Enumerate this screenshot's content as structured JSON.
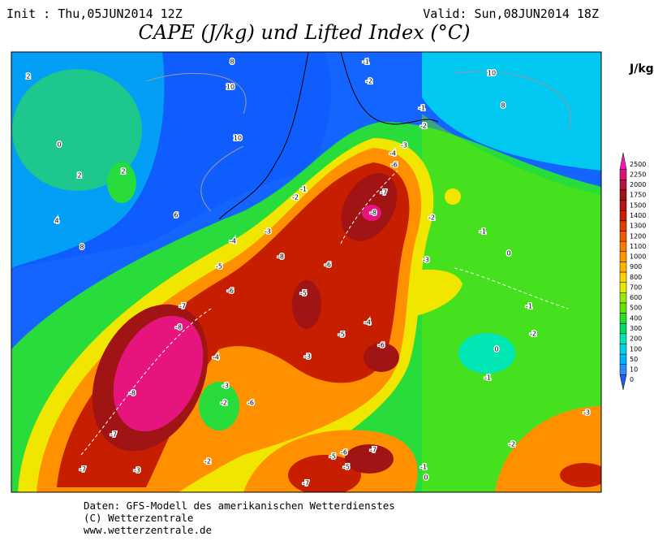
{
  "header": {
    "init": "Init : Thu,05JUN2014 12Z",
    "valid": "Valid: Sun,08JUN2014 18Z",
    "title": "CAPE (J/kg) und Lifted Index (°C)"
  },
  "colorbar": {
    "unit": "J/kg",
    "levels": [
      0,
      10,
      50,
      100,
      200,
      300,
      400,
      500,
      600,
      700,
      800,
      900,
      1000,
      1100,
      1200,
      1300,
      1400,
      1500,
      1750,
      2000,
      2250,
      2500
    ],
    "colors": [
      "#1e5aff",
      "#2a8cff",
      "#00b4ff",
      "#00d2e6",
      "#00e6b4",
      "#00dc64",
      "#28dc28",
      "#64e600",
      "#a0e600",
      "#e6e600",
      "#ffd200",
      "#ffb400",
      "#ff9600",
      "#ff7800",
      "#f05a00",
      "#dc3c00",
      "#c81e00",
      "#b41414",
      "#a01414",
      "#b4143c",
      "#dc1478",
      "#ff14b4"
    ]
  },
  "contour_labels": [
    -8,
    -8,
    -7,
    -7,
    -7,
    -6,
    -5,
    -4,
    -3,
    -8,
    -7,
    -8,
    -6,
    -5,
    -4,
    -6,
    -5,
    -3,
    -2,
    -1,
    0,
    -1,
    -2,
    0,
    -1,
    -2,
    -3,
    2,
    2,
    4,
    6,
    8,
    10,
    10,
    8,
    10,
    8,
    2,
    0,
    -1,
    -2,
    -1,
    -2,
    -3,
    -4,
    -6,
    -2,
    -1,
    -3,
    -4,
    -3,
    -2,
    -6,
    -5,
    -6,
    -7,
    -7,
    -5,
    -3,
    -2,
    -1,
    0
  ],
  "footer": [
    "Daten: GFS-Modell des amerikanischen Wetterdienstes",
    "(C) Wetterzentrale",
    "www.wetterzentrale.de"
  ]
}
